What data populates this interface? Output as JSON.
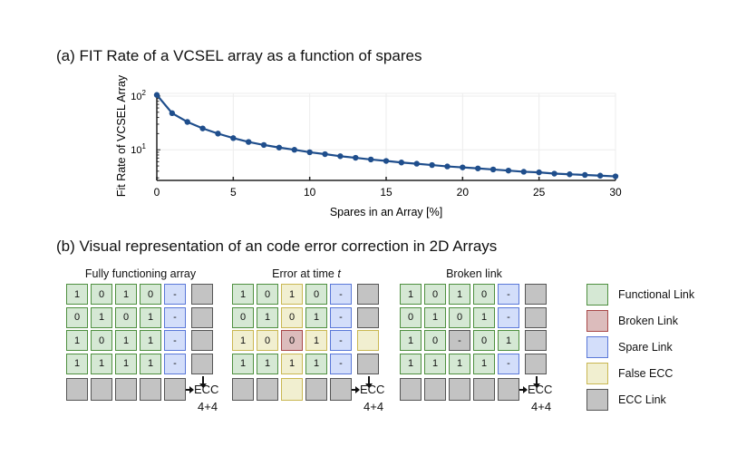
{
  "title_a": "(a) FIT Rate of a VCSEL array as a function of spares",
  "title_b": "(b) Visual representation of an code error correction in 2D Arrays",
  "chart_data": {
    "type": "line",
    "title": "FIT Rate of a VCSEL array as a function of spares",
    "xlabel": "Spares in an Array [%]",
    "ylabel": "Fit Rate of VCSEL Array",
    "xlim": [
      0,
      30
    ],
    "ylim_log10": [
      0.43,
      2.05
    ],
    "yscale": "log",
    "xticks": [
      "0",
      "5",
      "10",
      "15",
      "20",
      "25",
      "30"
    ],
    "xtick_values": [
      0,
      5,
      10,
      15,
      20,
      25,
      30
    ],
    "yticks": [
      {
        "base": "10",
        "exp": "2",
        "value": 100
      },
      {
        "base": "10",
        "exp": "1",
        "value": 10
      }
    ],
    "grid": true,
    "series": [
      {
        "name": "FIT Rate",
        "color": "#1f4e8c",
        "x": [
          0,
          1,
          2,
          3,
          4,
          5,
          6,
          7,
          8,
          9,
          10,
          11,
          12,
          13,
          14,
          15,
          16,
          17,
          18,
          19,
          20,
          21,
          22,
          23,
          24,
          25,
          26,
          27,
          28,
          29,
          30
        ],
        "y": [
          105,
          48,
          33,
          25,
          20,
          16.5,
          14,
          12.3,
          11,
          10,
          9,
          8.3,
          7.6,
          7.1,
          6.6,
          6.2,
          5.8,
          5.5,
          5.2,
          4.9,
          4.7,
          4.5,
          4.3,
          4.1,
          3.9,
          3.8,
          3.6,
          3.5,
          3.4,
          3.3,
          3.2
        ]
      }
    ]
  },
  "arrays": [
    {
      "title": "Fully functioning array",
      "title_italic": "",
      "values": [
        [
          "1",
          "0",
          "1",
          "0",
          "-",
          ""
        ],
        [
          "0",
          "1",
          "0",
          "1",
          "-",
          ""
        ],
        [
          "1",
          "0",
          "1",
          "1",
          "-",
          ""
        ],
        [
          "1",
          "1",
          "1",
          "1",
          "-",
          ""
        ]
      ],
      "types": [
        [
          "f",
          "f",
          "f",
          "f",
          "s",
          "e"
        ],
        [
          "f",
          "f",
          "f",
          "f",
          "s",
          "e"
        ],
        [
          "f",
          "f",
          "f",
          "f",
          "s",
          "e"
        ],
        [
          "f",
          "f",
          "f",
          "f",
          "s",
          "e"
        ]
      ],
      "ecc_row": [
        "e",
        "e",
        "e",
        "e",
        "e"
      ],
      "ecc_label": "ECC",
      "ecc_sub": "4+4"
    },
    {
      "title": "Error at time ",
      "title_italic": "t",
      "values": [
        [
          "1",
          "0",
          "1",
          "0",
          "-",
          ""
        ],
        [
          "0",
          "1",
          "0",
          "1",
          "-",
          ""
        ],
        [
          "1",
          "0",
          "0",
          "1",
          "-",
          ""
        ],
        [
          "1",
          "1",
          "1",
          "1",
          "-",
          ""
        ]
      ],
      "types": [
        [
          "f",
          "f",
          "y",
          "f",
          "s",
          "e"
        ],
        [
          "f",
          "f",
          "y",
          "f",
          "s",
          "e"
        ],
        [
          "y",
          "y",
          "b",
          "y",
          "s",
          "y"
        ],
        [
          "f",
          "f",
          "y",
          "f",
          "s",
          "e"
        ]
      ],
      "ecc_row": [
        "e",
        "e",
        "y",
        "e",
        "e"
      ],
      "ecc_label": "ECC",
      "ecc_sub": "4+4"
    },
    {
      "title": "Broken link",
      "title_italic": "",
      "values": [
        [
          "1",
          "0",
          "1",
          "0",
          "-",
          ""
        ],
        [
          "0",
          "1",
          "0",
          "1",
          "-",
          ""
        ],
        [
          "1",
          "0",
          "-",
          "0",
          "1",
          ""
        ],
        [
          "1",
          "1",
          "1",
          "1",
          "-",
          ""
        ]
      ],
      "types": [
        [
          "f",
          "f",
          "f",
          "f",
          "s",
          "e"
        ],
        [
          "f",
          "f",
          "f",
          "f",
          "s",
          "e"
        ],
        [
          "f",
          "f",
          "e",
          "f",
          "f",
          "e"
        ],
        [
          "f",
          "f",
          "f",
          "f",
          "s",
          "e"
        ]
      ],
      "ecc_row": [
        "e",
        "e",
        "e",
        "e",
        "e"
      ],
      "ecc_label": "ECC",
      "ecc_sub": "4+4"
    }
  ],
  "legend": [
    {
      "type": "f",
      "label": "Functional Link"
    },
    {
      "type": "b",
      "label": "Broken Link"
    },
    {
      "type": "s",
      "label": "Spare Link"
    },
    {
      "type": "y",
      "label": "False ECC"
    },
    {
      "type": "e",
      "label": "ECC Link"
    }
  ]
}
